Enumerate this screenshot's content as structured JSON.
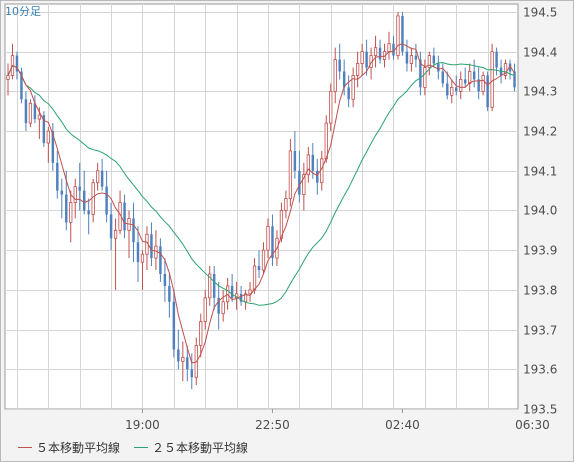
{
  "interval_label": "10分足",
  "legend": [
    {
      "label": "５本移動平均線",
      "color": "#c0504d"
    },
    {
      "label": "２５本移動平均線",
      "color": "#2aa36f"
    }
  ],
  "colors": {
    "up": "#c0504d",
    "down": "#4f81bd",
    "grid": "#d6d6d6"
  },
  "chart_data": {
    "type": "candlestick",
    "title": "",
    "xlabel": "",
    "ylabel": "",
    "ylim": [
      193.5,
      194.52
    ],
    "y_ticks": [
      "194.5",
      "194.4",
      "194.3",
      "194.2",
      "194.1",
      "194.0",
      "193.9",
      "193.8",
      "193.7",
      "193.6",
      "193.5"
    ],
    "x_ticks": [
      {
        "label": "19:00",
        "index": 30
      },
      {
        "label": "22:50",
        "index": 59
      },
      {
        "label": "02:40",
        "index": 88
      },
      {
        "label": "06:30",
        "index": 117
      }
    ],
    "series": [
      {
        "name": "５本移動平均線",
        "type": "line",
        "source": "ma5"
      },
      {
        "name": "２５本移動平均線",
        "type": "line",
        "source": "ma25"
      }
    ],
    "ohlc": [
      [
        194.33,
        194.37,
        194.29,
        194.34
      ],
      [
        194.34,
        194.42,
        194.33,
        194.39
      ],
      [
        194.39,
        194.4,
        194.33,
        194.35
      ],
      [
        194.35,
        194.36,
        194.27,
        194.28
      ],
      [
        194.28,
        194.3,
        194.2,
        194.22
      ],
      [
        194.22,
        194.28,
        194.21,
        194.27
      ],
      [
        194.27,
        194.29,
        194.22,
        194.23
      ],
      [
        194.23,
        194.26,
        194.18,
        194.24
      ],
      [
        194.24,
        194.25,
        194.16,
        194.17
      ],
      [
        194.17,
        194.21,
        194.12,
        194.2
      ],
      [
        194.2,
        194.22,
        194.1,
        194.12
      ],
      [
        194.12,
        194.15,
        194.03,
        194.05
      ],
      [
        194.05,
        194.08,
        193.98,
        194.04
      ],
      [
        194.04,
        194.1,
        193.95,
        193.97
      ],
      [
        193.97,
        194.05,
        193.92,
        194.02
      ],
      [
        194.02,
        194.08,
        193.98,
        194.06
      ],
      [
        194.06,
        194.12,
        194.0,
        194.05
      ],
      [
        194.05,
        194.1,
        193.99,
        194.0
      ],
      [
        194.0,
        194.03,
        193.94,
        193.99
      ],
      [
        193.99,
        194.08,
        193.97,
        194.07
      ],
      [
        194.07,
        194.12,
        194.05,
        194.1
      ],
      [
        194.1,
        194.13,
        194.05,
        194.06
      ],
      [
        194.06,
        194.1,
        193.97,
        193.99
      ],
      [
        193.99,
        194.02,
        193.9,
        193.93
      ],
      [
        193.93,
        193.98,
        193.8,
        193.95
      ],
      [
        193.95,
        194.05,
        193.94,
        194.02
      ],
      [
        194.02,
        194.04,
        193.93,
        193.95
      ],
      [
        193.95,
        194.0,
        193.88,
        193.98
      ],
      [
        193.98,
        194.02,
        193.87,
        193.92
      ],
      [
        193.92,
        193.96,
        193.82,
        193.87
      ],
      [
        193.87,
        193.9,
        193.8,
        193.89
      ],
      [
        193.89,
        193.96,
        193.85,
        193.94
      ],
      [
        193.94,
        193.97,
        193.86,
        193.88
      ],
      [
        193.88,
        193.95,
        193.85,
        193.91
      ],
      [
        193.91,
        193.93,
        193.82,
        193.84
      ],
      [
        193.84,
        193.88,
        193.77,
        193.81
      ],
      [
        193.81,
        193.84,
        193.73,
        193.77
      ],
      [
        193.77,
        193.8,
        193.63,
        193.65
      ],
      [
        193.65,
        193.7,
        193.6,
        193.62
      ],
      [
        193.62,
        193.67,
        193.57,
        193.63
      ],
      [
        193.63,
        193.66,
        193.57,
        193.6
      ],
      [
        193.6,
        193.64,
        193.55,
        193.58
      ],
      [
        193.58,
        193.68,
        193.56,
        193.66
      ],
      [
        193.66,
        193.74,
        193.63,
        193.72
      ],
      [
        193.72,
        193.8,
        193.7,
        193.78
      ],
      [
        193.78,
        193.86,
        193.76,
        193.84
      ],
      [
        193.84,
        193.86,
        193.75,
        193.78
      ],
      [
        193.78,
        193.82,
        193.7,
        193.74
      ],
      [
        193.74,
        193.8,
        193.72,
        193.77
      ],
      [
        193.77,
        193.83,
        193.75,
        193.81
      ],
      [
        193.81,
        193.84,
        193.77,
        193.78
      ],
      [
        193.78,
        193.82,
        193.75,
        193.79
      ],
      [
        193.79,
        193.81,
        193.76,
        193.77
      ],
      [
        193.77,
        193.8,
        193.75,
        193.79
      ],
      [
        193.79,
        193.82,
        193.77,
        193.8
      ],
      [
        193.8,
        193.88,
        193.79,
        193.86
      ],
      [
        193.86,
        193.9,
        193.83,
        193.85
      ],
      [
        193.85,
        193.92,
        193.84,
        193.9
      ],
      [
        193.9,
        193.98,
        193.88,
        193.96
      ],
      [
        193.96,
        193.99,
        193.86,
        193.88
      ],
      [
        193.88,
        193.95,
        193.86,
        193.93
      ],
      [
        193.93,
        194.02,
        193.92,
        194.0
      ],
      [
        194.0,
        194.05,
        193.98,
        194.03
      ],
      [
        194.03,
        194.18,
        194.01,
        194.15
      ],
      [
        194.15,
        194.2,
        194.08,
        194.1
      ],
      [
        194.1,
        194.15,
        194.02,
        194.04
      ],
      [
        194.04,
        194.12,
        194.0,
        194.09
      ],
      [
        194.09,
        194.16,
        194.07,
        194.14
      ],
      [
        194.14,
        194.17,
        194.08,
        194.1
      ],
      [
        194.1,
        194.13,
        194.04,
        194.07
      ],
      [
        194.07,
        194.15,
        194.05,
        194.13
      ],
      [
        194.13,
        194.24,
        194.12,
        194.22
      ],
      [
        194.22,
        194.32,
        194.2,
        194.3
      ],
      [
        194.3,
        194.41,
        194.27,
        194.38
      ],
      [
        194.38,
        194.42,
        194.33,
        194.35
      ],
      [
        194.35,
        194.38,
        194.29,
        194.31
      ],
      [
        194.31,
        194.34,
        194.26,
        194.28
      ],
      [
        194.28,
        194.36,
        194.26,
        194.34
      ],
      [
        194.34,
        194.4,
        194.31,
        194.37
      ],
      [
        194.37,
        194.42,
        194.34,
        194.4
      ],
      [
        194.4,
        194.43,
        194.34,
        194.36
      ],
      [
        194.36,
        194.41,
        194.33,
        194.39
      ],
      [
        194.39,
        194.44,
        194.36,
        194.41
      ],
      [
        194.41,
        194.43,
        194.37,
        194.38
      ],
      [
        194.38,
        194.42,
        194.36,
        194.4
      ],
      [
        194.4,
        194.45,
        194.38,
        194.42
      ],
      [
        194.42,
        194.44,
        194.38,
        194.39
      ],
      [
        194.39,
        194.5,
        194.38,
        194.49
      ],
      [
        194.49,
        194.5,
        194.39,
        194.4
      ],
      [
        194.4,
        194.43,
        194.35,
        194.37
      ],
      [
        194.37,
        194.41,
        194.35,
        194.39
      ],
      [
        194.39,
        194.42,
        194.36,
        194.38
      ],
      [
        194.38,
        194.4,
        194.29,
        194.31
      ],
      [
        194.31,
        194.38,
        194.29,
        194.36
      ],
      [
        194.36,
        194.4,
        194.34,
        194.39
      ],
      [
        194.39,
        194.41,
        194.36,
        194.37
      ],
      [
        194.37,
        194.39,
        194.33,
        194.35
      ],
      [
        194.35,
        194.37,
        194.31,
        194.32
      ],
      [
        194.32,
        194.35,
        194.28,
        194.29
      ],
      [
        194.29,
        194.33,
        194.27,
        194.31
      ],
      [
        194.31,
        194.34,
        194.29,
        194.3
      ],
      [
        194.3,
        194.35,
        194.28,
        194.33
      ],
      [
        194.33,
        194.36,
        194.31,
        194.32
      ],
      [
        194.32,
        194.37,
        194.3,
        194.35
      ],
      [
        194.35,
        194.38,
        194.31,
        194.33
      ],
      [
        194.33,
        194.36,
        194.28,
        194.3
      ],
      [
        194.3,
        194.35,
        194.29,
        194.34
      ],
      [
        194.34,
        194.35,
        194.25,
        194.26
      ],
      [
        194.26,
        194.42,
        194.25,
        194.4
      ],
      [
        194.4,
        194.41,
        194.34,
        194.36
      ],
      [
        194.36,
        194.38,
        194.32,
        194.34
      ],
      [
        194.34,
        194.38,
        194.33,
        194.37
      ],
      [
        194.37,
        194.38,
        194.33,
        194.35
      ],
      [
        194.35,
        194.37,
        194.3,
        194.31
      ]
    ]
  }
}
